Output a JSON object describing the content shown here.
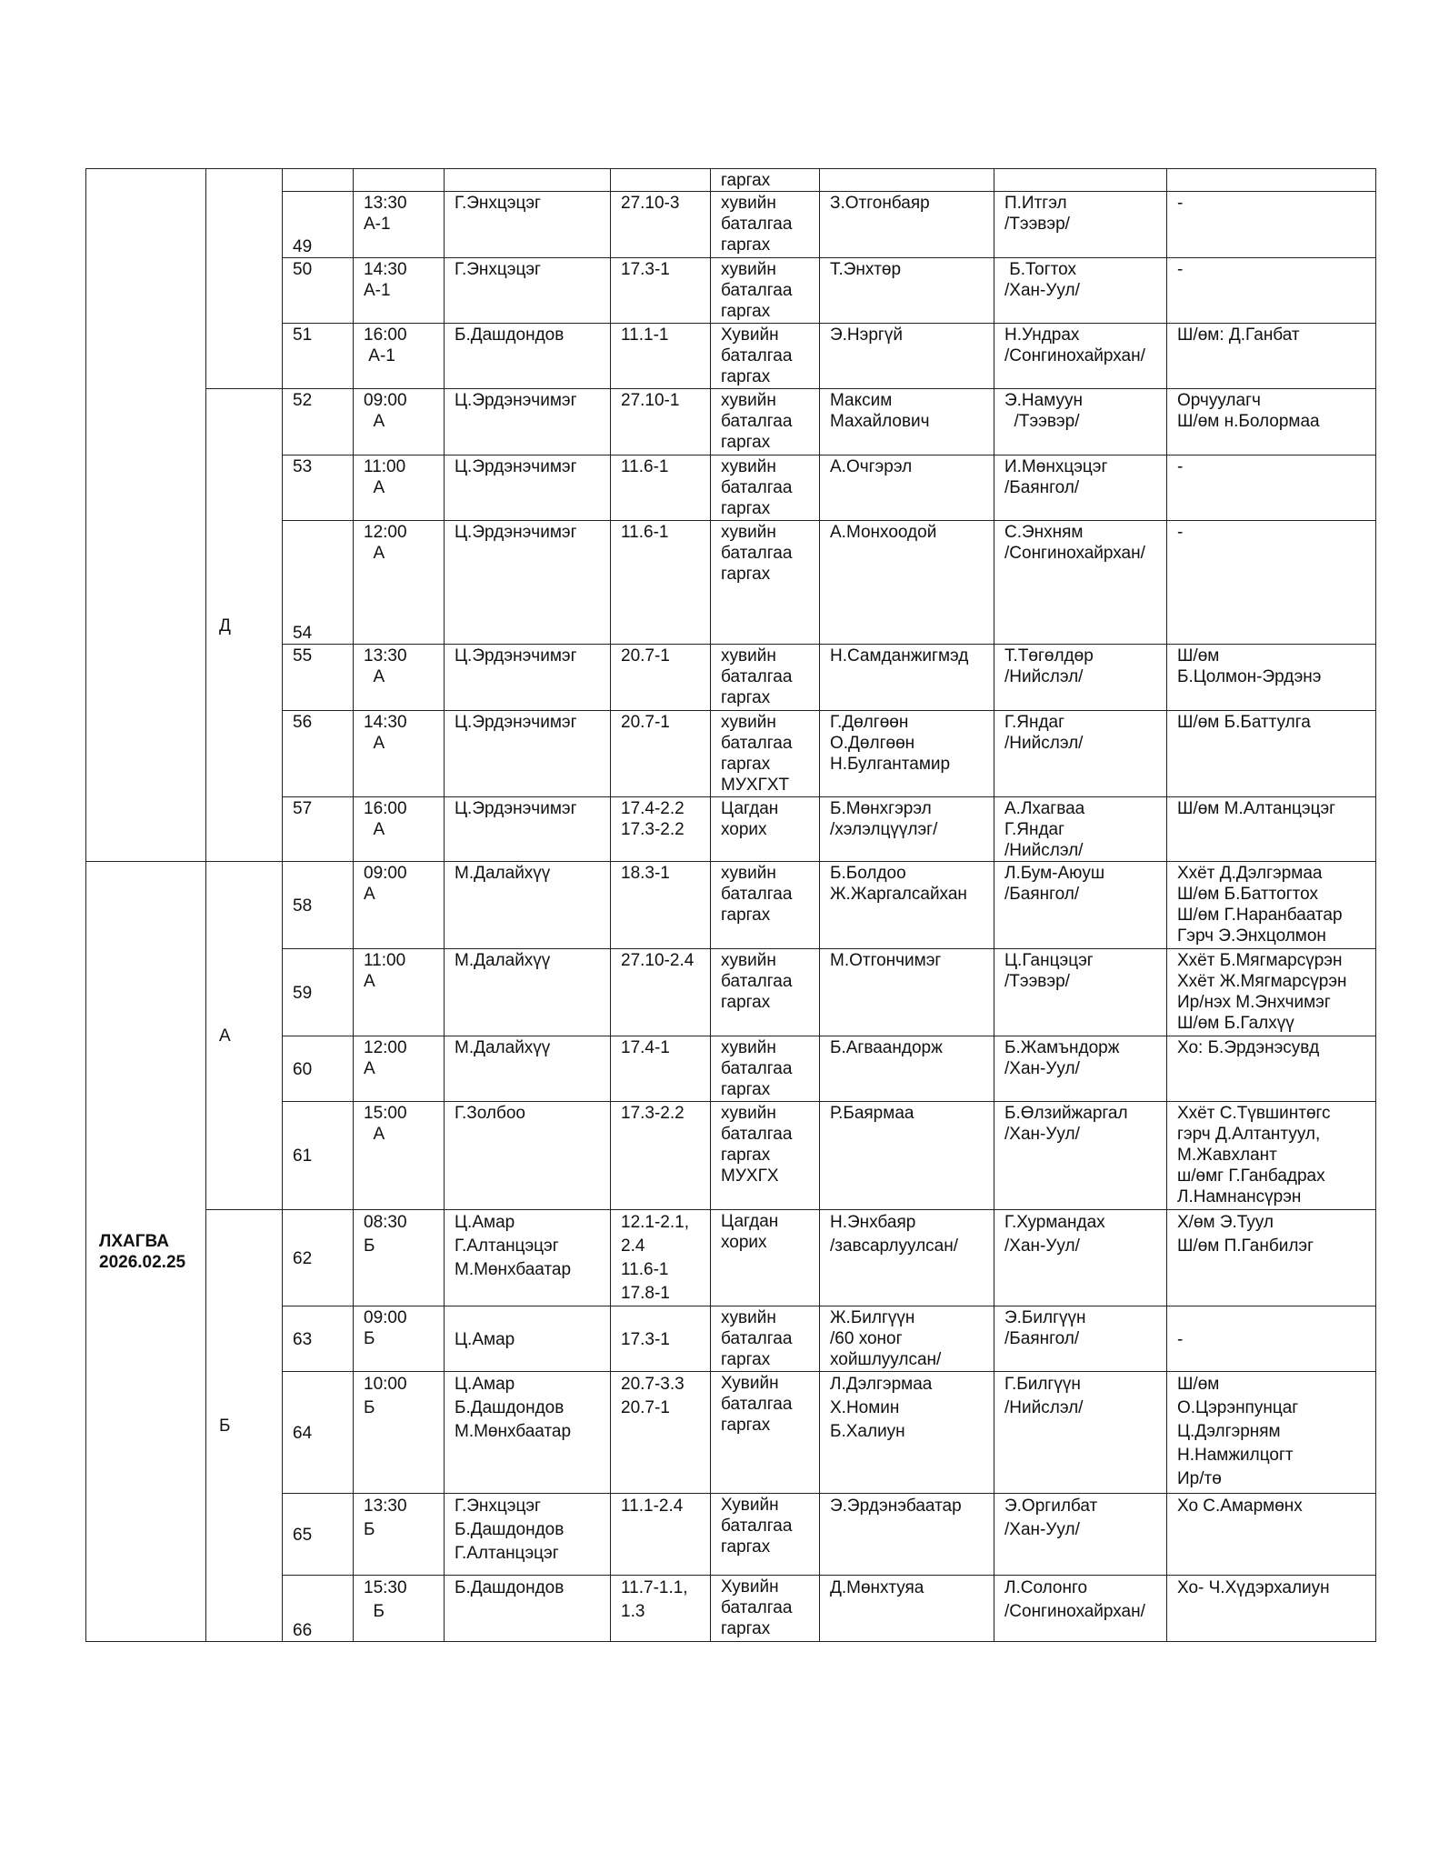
{
  "days": [
    {
      "label": [
        "",
        ""
      ]
    },
    {
      "label": [
        "ЛХАГВА",
        "2026.02.25"
      ]
    }
  ],
  "groups": [
    "",
    "Д",
    "А",
    "Б"
  ],
  "rows": [
    {
      "num": "",
      "time": [],
      "judge": [],
      "code": [],
      "type": [
        "гаргах"
      ],
      "defendant": [],
      "prosecutor": [],
      "note": []
    },
    {
      "num": "49",
      "time": [
        "13:30",
        "А-1"
      ],
      "judge": [
        "Г.Энхцэцэг"
      ],
      "code": [
        "27.10-3"
      ],
      "type": [
        "хувийн",
        "баталгаа",
        "гаргах"
      ],
      "defendant": [
        "З.Отгонбаяр"
      ],
      "prosecutor": [
        "П.Итгэл",
        "/Тээвэр/"
      ],
      "note": [
        "-"
      ]
    },
    {
      "num": "50",
      "time": [
        "14:30",
        "А-1"
      ],
      "judge": [
        "Г.Энхцэцэг"
      ],
      "code": [
        "17.3-1"
      ],
      "type": [
        "хувийн",
        "баталгаа",
        "гаргах"
      ],
      "defendant": [
        "Т.Энхтөр"
      ],
      "prosecutor": [
        " Б.Тогтох",
        "/Хан-Уул/"
      ],
      "note": [
        "-"
      ]
    },
    {
      "num": "51",
      "time": [
        "16:00",
        " А-1"
      ],
      "judge": [
        "Б.Дашдондов"
      ],
      "code": [
        "11.1-1"
      ],
      "type": [
        "Хувийн",
        "баталгаа",
        "гаргах"
      ],
      "defendant": [
        "Э.Нэргүй"
      ],
      "prosecutor": [
        "Н.Ундрах",
        "/Сонгинохайрхан/"
      ],
      "note": [
        "Ш/өм: Д.Ганбат"
      ]
    },
    {
      "num": "52",
      "time": [
        "09:00",
        "  А"
      ],
      "judge": [
        "Ц.Эрдэнэчимэг"
      ],
      "code": [
        "27.10-1"
      ],
      "type": [
        "хувийн",
        "баталгаа",
        "гаргах"
      ],
      "defendant": [
        "Максим",
        "Махайлович"
      ],
      "prosecutor": [
        "Э.Намуун",
        "  /Тээвэр/"
      ],
      "note": [
        "Орчуулагч",
        "Ш/өм н.Болормаа"
      ]
    },
    {
      "num": "53",
      "time": [
        "11:00",
        "  А"
      ],
      "judge": [
        "Ц.Эрдэнэчимэг"
      ],
      "code": [
        "11.6-1"
      ],
      "type": [
        "хувийн",
        "баталгаа",
        "гаргах"
      ],
      "defendant": [
        "А.Очгэрэл"
      ],
      "prosecutor": [
        "И.Мөнхцэцэг",
        "/Баянгол/"
      ],
      "note": [
        "-"
      ]
    },
    {
      "num": "54",
      "time": [
        "12:00",
        "  А"
      ],
      "judge": [
        "Ц.Эрдэнэчимэг"
      ],
      "code": [
        "11.6-1"
      ],
      "type": [
        "хувийн",
        "баталгаа",
        "гаргах"
      ],
      "defendant": [
        "А.Монхоодой"
      ],
      "prosecutor": [
        "С.Энхням",
        "/Сонгинохайрхан/"
      ],
      "note": [
        "-"
      ]
    },
    {
      "num": "55",
      "time": [
        "13:30",
        "  А"
      ],
      "judge": [
        "Ц.Эрдэнэчимэг"
      ],
      "code": [
        "20.7-1"
      ],
      "type": [
        "хувийн",
        "баталгаа",
        "гаргах"
      ],
      "defendant": [
        "Н.Самданжигмэд"
      ],
      "prosecutor": [
        "Т.Төгөлдөр",
        "/Нийслэл/"
      ],
      "note": [
        "Ш/өм",
        "Б.Цолмон-Эрдэнэ"
      ]
    },
    {
      "num": "56",
      "time": [
        "14:30",
        "  А"
      ],
      "judge": [
        "Ц.Эрдэнэчимэг"
      ],
      "code": [
        "20.7-1"
      ],
      "type": [
        "хувийн",
        "баталгаа",
        "гаргах",
        "МУХГХТ"
      ],
      "defendant": [
        "Г.Дөлгөөн",
        "О.Дөлгөөн",
        "Н.Булгантамир"
      ],
      "prosecutor": [
        "Г.Яндаг",
        "/Нийслэл/"
      ],
      "note": [
        "Ш/өм Б.Баттулга"
      ]
    },
    {
      "num": "57",
      "time": [
        "16:00",
        "  А"
      ],
      "judge": [
        "Ц.Эрдэнэчимэг"
      ],
      "code": [
        "17.4-2.2",
        "17.3-2.2"
      ],
      "type": [
        "Цагдан",
        "хорих"
      ],
      "defendant": [
        "Б.Мөнхгэрэл",
        "/хэлэлцүүлэг/"
      ],
      "prosecutor": [
        "А.Лхагваа",
        "Г.Яндаг",
        "/Нийслэл/"
      ],
      "note": [
        "Ш/өм М.Алтанцэцэг"
      ]
    },
    {
      "num": "58",
      "time": [
        "09:00",
        "А"
      ],
      "judge": [
        "М.Далайхүү"
      ],
      "code": [
        "18.3-1"
      ],
      "type": [
        "хувийн",
        "баталгаа",
        "гаргах"
      ],
      "defendant": [
        "Б.Болдоо",
        "Ж.Жаргалсайхан"
      ],
      "prosecutor": [
        "Л.Бум-Аюуш",
        "/Баянгол/"
      ],
      "note": [
        "Ххёт Д.Дэлгэрмаа",
        "Ш/өм Б.Баттогтох",
        "Ш/өм Г.Наранбаатар",
        "Гэрч Э.Энхцолмон"
      ]
    },
    {
      "num": "59",
      "time": [
        "11:00",
        "А"
      ],
      "judge": [
        "М.Далайхүү"
      ],
      "code": [
        "27.10-2.4"
      ],
      "type": [
        "хувийн",
        "баталгаа",
        "гаргах"
      ],
      "defendant": [
        "М.Отгончимэг"
      ],
      "prosecutor": [
        "Ц.Ганцэцэг",
        "/Тээвэр/"
      ],
      "note": [
        "Ххёт Б.Мягмарсүрэн",
        "Ххёт Ж.Мягмарсүрэн",
        "Ир/нэх М.Энхчимэг",
        "Ш/өм Б.Галхүү"
      ]
    },
    {
      "num": "60",
      "time": [
        "12:00",
        "А"
      ],
      "judge": [
        "М.Далайхүү"
      ],
      "code": [
        "17.4-1"
      ],
      "type": [
        "хувийн",
        "баталгаа",
        "гаргах"
      ],
      "defendant": [
        "Б.Агваандорж"
      ],
      "prosecutor": [
        "Б.Жамъндорж",
        "/Хан-Уул/"
      ],
      "note": [
        "Хо: Б.Эрдэнэсувд"
      ]
    },
    {
      "num": "61",
      "time": [
        "15:00",
        "  А"
      ],
      "judge": [
        "Г.Золбоо"
      ],
      "code": [
        "17.3-2.2"
      ],
      "type": [
        "хувийн",
        "баталгаа",
        "гаргах",
        "МУХГХ"
      ],
      "defendant": [
        "Р.Баярмаа"
      ],
      "prosecutor": [
        "Б.Өлзийжаргал",
        "/Хан-Уул/"
      ],
      "note": [
        "Ххёт С.Түвшинтөгс",
        "гэрч Д.Алтантуул,",
        "М.Жавхлант",
        "ш/өмг Г.Ганбадрах",
        "Л.Намнансүрэн"
      ]
    },
    {
      "num": "62",
      "time": [
        "08:30",
        "Б"
      ],
      "judge": [
        "Ц.Амар",
        "Г.Алтанцэцэг",
        "М.Мөнхбаатар"
      ],
      "code": [
        "12.1-2.1,",
        "2.4",
        "11.6-1",
        "17.8-1"
      ],
      "type": [
        "Цагдан",
        "хорих"
      ],
      "defendant": [
        "Н.Энхбаяр",
        "/завсарлуулсан/"
      ],
      "prosecutor": [
        "Г.Хурмандах",
        "/Хан-Уул/"
      ],
      "note": [
        "Х/өм Э.Туул",
        "Ш/өм П.Ганбилэг"
      ]
    },
    {
      "num": "63",
      "time": [
        "09:00",
        "Б"
      ],
      "judge": [
        "Ц.Амар"
      ],
      "code": [
        "17.3-1"
      ],
      "type": [
        "хувийн",
        "баталгаа",
        "гаргах"
      ],
      "defendant": [
        "Ж.Билгүүн",
        "/60 хоног",
        "хойшлуулсан/"
      ],
      "prosecutor": [
        "Э.Билгүүн",
        "/Баянгол/"
      ],
      "note": [
        "-"
      ]
    },
    {
      "num": "64",
      "time": [
        "10:00",
        "Б"
      ],
      "judge": [
        "Ц.Амар",
        "Б.Дашдондов",
        "М.Мөнхбаатар"
      ],
      "code": [
        "20.7-3.3",
        "20.7-1"
      ],
      "type": [
        "Хувийн",
        "баталгаа",
        "гаргах"
      ],
      "defendant": [
        "Л.Дэлгэрмаа",
        "Х.Номин",
        "Б.Халиун"
      ],
      "prosecutor": [
        "Г.Билгүүн",
        "/Нийслэл/"
      ],
      "note": [
        "Ш/өм",
        "О.Цэрэнпунцаг",
        "Ц.Дэлгэрням",
        "Н.Намжилцогт",
        "Ир/тө"
      ]
    },
    {
      "num": "65",
      "time": [
        "13:30",
        "Б"
      ],
      "judge": [
        "Г.Энхцэцэг",
        "Б.Дашдондов",
        "Г.Алтанцэцэг"
      ],
      "code": [
        "11.1-2.4"
      ],
      "type": [
        "Хувийн",
        "баталгаа",
        "гаргах"
      ],
      "defendant": [
        "Э.Эрдэнэбаатар"
      ],
      "prosecutor": [
        "Э.Оргилбат",
        "/Хан-Уул/"
      ],
      "note": [
        "Хо С.Амармөнх"
      ]
    },
    {
      "num": "66",
      "time": [
        "15:30",
        "  Б"
      ],
      "judge": [
        "Б.Дашдондов"
      ],
      "code": [
        "11.7-1.1,",
        "1.3"
      ],
      "type": [
        "Хувийн",
        "баталгаа",
        "гаргах"
      ],
      "defendant": [
        "Д.Мөнхтуяа"
      ],
      "prosecutor": [
        "Л.Солонго",
        "/Сонгинохайрхан/"
      ],
      "note": [
        "Хо- Ч.Хүдэрхалиун"
      ]
    }
  ]
}
